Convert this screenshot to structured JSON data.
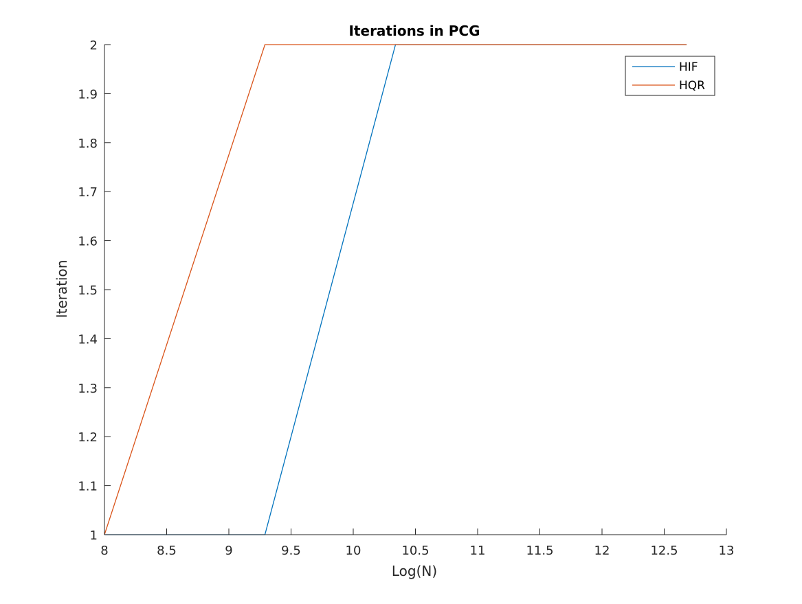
{
  "chart_data": {
    "type": "line",
    "title": "Iterations in PCG",
    "xlabel": "Log(N)",
    "ylabel": "Iteration",
    "xlim": [
      8,
      13
    ],
    "ylim": [
      1,
      2
    ],
    "xticks": [
      8,
      8.5,
      9,
      9.5,
      10,
      10.5,
      11,
      11.5,
      12,
      12.5,
      13
    ],
    "xtick_labels": [
      "8",
      "8.5",
      "9",
      "9.5",
      "10",
      "10.5",
      "11",
      "11.5",
      "12",
      "12.5",
      "13"
    ],
    "yticks": [
      1,
      1.1,
      1.2,
      1.3,
      1.4,
      1.5,
      1.6,
      1.7,
      1.8,
      1.9,
      2
    ],
    "ytick_labels": [
      "1",
      "1.1",
      "1.2",
      "1.3",
      "1.4",
      "1.5",
      "1.6",
      "1.7",
      "1.8",
      "1.9",
      "2"
    ],
    "grid": false,
    "legend_position": "top-right",
    "series": [
      {
        "name": "HIF",
        "color": "#0072BD",
        "x": [
          8.0,
          9.29,
          10.34,
          11.04,
          11.73,
          12.68
        ],
        "y": [
          1,
          1,
          2,
          2,
          2,
          2
        ]
      },
      {
        "name": "HQR",
        "color": "#D95319",
        "x": [
          8.0,
          9.29,
          10.34,
          11.04,
          11.73,
          12.68
        ],
        "y": [
          1,
          2,
          2,
          2,
          2,
          2
        ]
      }
    ]
  }
}
